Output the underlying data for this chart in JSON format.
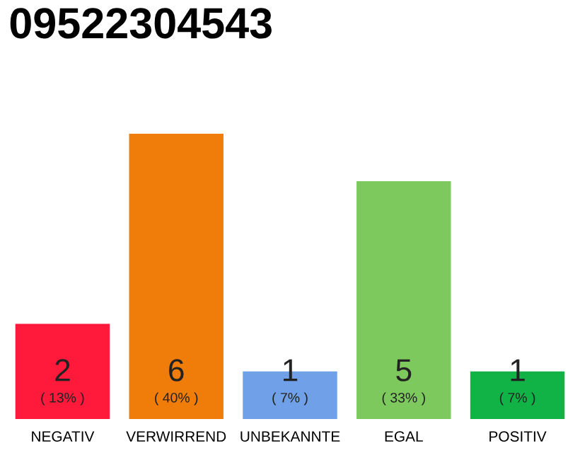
{
  "chart_data": {
    "type": "bar",
    "title": "09522304543",
    "categories": [
      "NEGATIV",
      "VERWIRREND",
      "UNBEKANNTE",
      "EGAL",
      "POSITIV"
    ],
    "values": [
      2,
      6,
      1,
      5,
      1
    ],
    "colors": [
      "#ff1a3c",
      "#f07d0a",
      "#6fa0e8",
      "#7dc95e",
      "#12b346"
    ],
    "data_labels": true,
    "annotations": [
      {
        "text": "( 13% )",
        "x": "NEGATIV",
        "y": 0
      },
      {
        "text": "( 40% )",
        "x": "VERWIRREND",
        "y": 0
      },
      {
        "text": "( 7% )",
        "x": "UNBEKANNTE",
        "y": 0
      },
      {
        "text": "( 33% )",
        "x": "EGAL",
        "y": 0
      },
      {
        "text": "( 7% )",
        "x": "POSITIV",
        "y": 0
      }
    ],
    "grid": false,
    "legend": false
  }
}
